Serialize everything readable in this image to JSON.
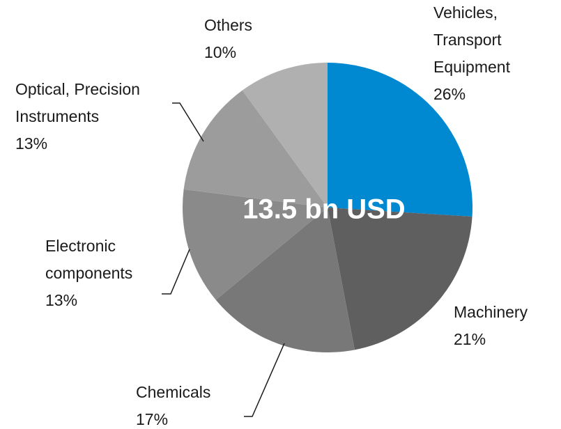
{
  "chart_data": {
    "type": "pie",
    "center_label": "13.5 bn USD",
    "categories": [
      "Vehicles, Transport Equipment",
      "Machinery",
      "Chemicals",
      "Electronic components",
      "Optical, Precision Instruments",
      "Others"
    ],
    "values": [
      26,
      21,
      17,
      13,
      13,
      10
    ],
    "value_labels": [
      "26%",
      "21%",
      "17%",
      "13%",
      "13%",
      "10%"
    ],
    "colors": [
      "#0088d1",
      "#5f5f5f",
      "#787878",
      "#8a8a8a",
      "#9c9c9c",
      "#b0b0b0"
    ]
  }
}
